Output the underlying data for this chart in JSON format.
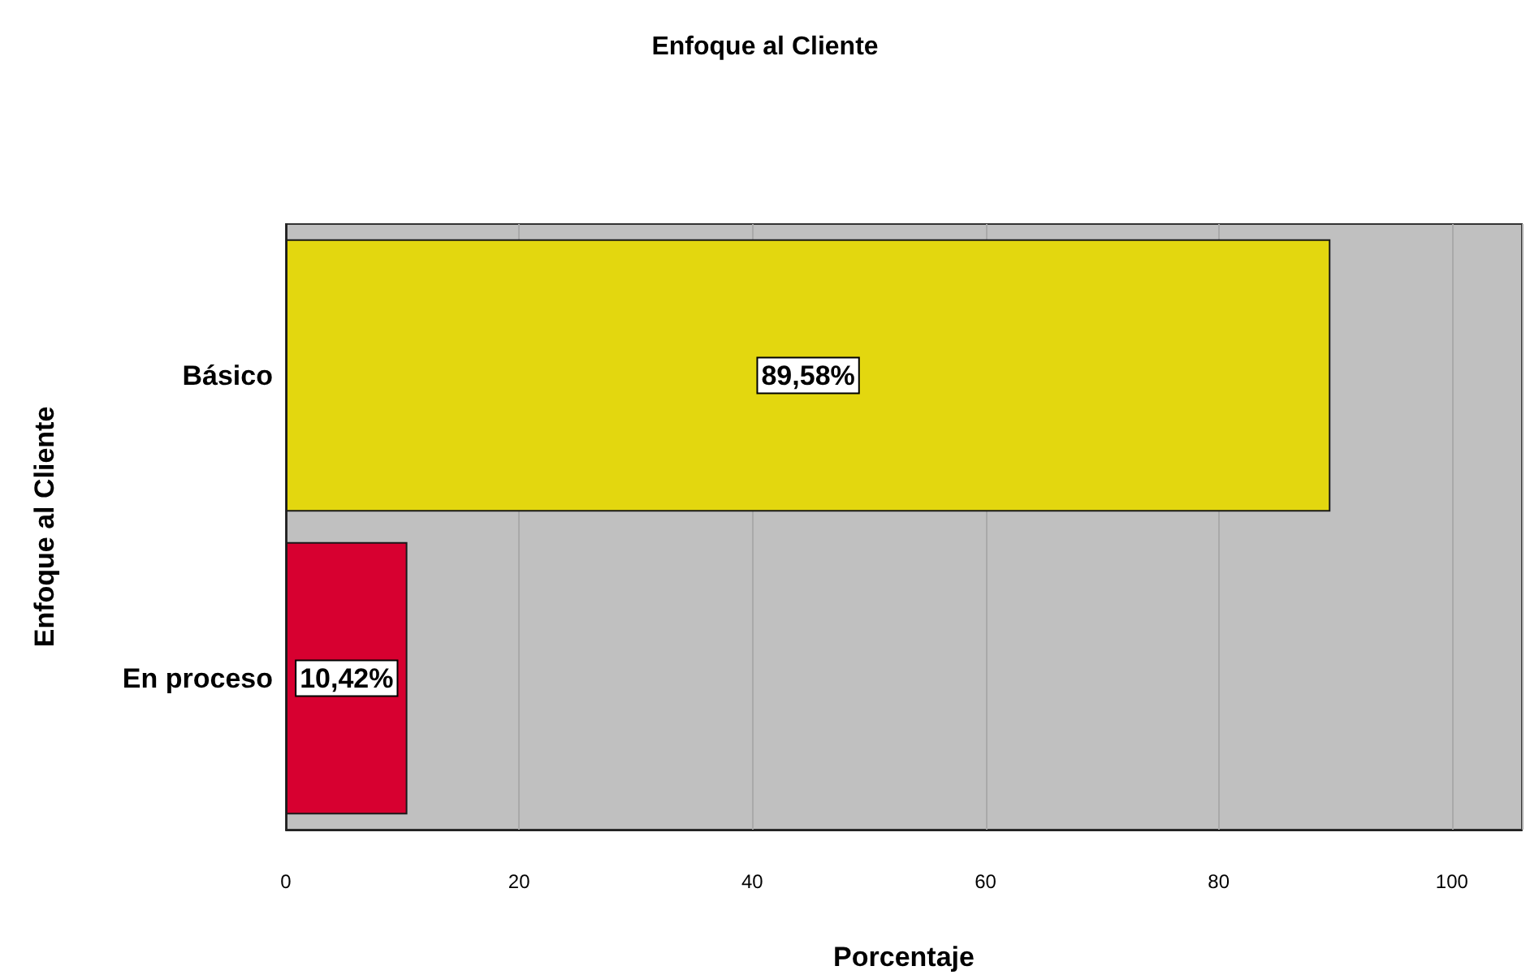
{
  "chart_data": {
    "type": "bar",
    "orientation": "horizontal",
    "title": "Enfoque al Cliente",
    "xlabel": "Porcentaje",
    "ylabel": "Enfoque al Cliente",
    "categories": [
      "Básico",
      "En proceso"
    ],
    "values": [
      89.58,
      10.42
    ],
    "colors": [
      "#e3d70f",
      "#d70030"
    ],
    "value_labels": [
      "89,58%",
      "10,42%"
    ],
    "xlim": [
      0,
      106
    ],
    "xticks": [
      0,
      20,
      40,
      60,
      80,
      100
    ],
    "grid": "x"
  }
}
